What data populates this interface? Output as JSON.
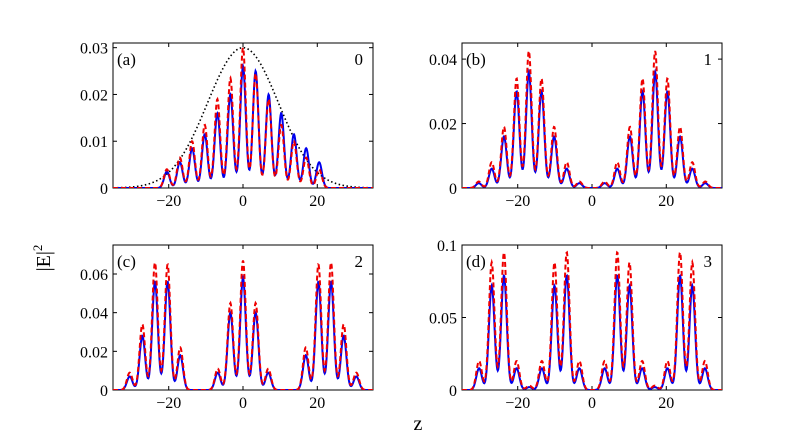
{
  "ylabel": "|E|",
  "ylabel_sup": "2",
  "xlabel": "z",
  "colors": {
    "blue": "#0000ee",
    "red": "#ee0000",
    "black": "#000000"
  },
  "chart_data": [
    {
      "type": "line",
      "panel": "(a)",
      "tag": "0",
      "xlim": [
        -35,
        35
      ],
      "ylim": [
        0,
        0.031
      ],
      "xticks": [
        "−20",
        "0",
        "20"
      ],
      "xtick_values": [
        -20,
        0,
        20
      ],
      "yticks": [
        "0",
        "0.01",
        "0.02",
        "0.03"
      ],
      "ytick_values": [
        0,
        0.01,
        0.02,
        0.03
      ],
      "envelope": {
        "amplitude": 0.03,
        "width": 13.5
      },
      "peaks": {
        "z": [
          -20.5,
          -17,
          -13.7,
          -10.3,
          -6.9,
          -3.4,
          0,
          3.4,
          6.9,
          10.3,
          13.7,
          17,
          20.5
        ],
        "blue": [
          0.0035,
          0.0055,
          0.0085,
          0.0115,
          0.016,
          0.02,
          0.026,
          0.025,
          0.02,
          0.016,
          0.0115,
          0.0085,
          0.0055
        ],
        "red": [
          0.004,
          0.0065,
          0.01,
          0.0135,
          0.019,
          0.0235,
          0.03,
          0.0245,
          0.019,
          0.0135,
          0.01,
          0.0065,
          0.004
        ]
      },
      "series": [
        {
          "style": "solid",
          "color": "blue"
        },
        {
          "style": "dashed",
          "color": "red"
        },
        {
          "style": "dotted",
          "color": "black"
        }
      ]
    },
    {
      "type": "line",
      "panel": "(b)",
      "tag": "1",
      "xlim": [
        -35,
        35
      ],
      "ylim": [
        0,
        0.045
      ],
      "xticks": [
        "−20",
        "0",
        "20"
      ],
      "xtick_values": [
        -20,
        0,
        20
      ],
      "yticks": [
        "0",
        "0.02",
        "0.04"
      ],
      "ytick_values": [
        0,
        0.02,
        0.04
      ],
      "peaks": {
        "z": [
          -30.5,
          -27,
          -23.7,
          -20.3,
          -17,
          -13.6,
          -10.2,
          -6.8,
          -3.4,
          3.4,
          6.8,
          10.2,
          13.6,
          17,
          20.3,
          23.7,
          27,
          30.5
        ],
        "blue": [
          0.0015,
          0.006,
          0.016,
          0.03,
          0.036,
          0.03,
          0.016,
          0.006,
          0.0015,
          0.0015,
          0.006,
          0.016,
          0.03,
          0.036,
          0.03,
          0.016,
          0.006,
          0.0015
        ],
        "red": [
          0.002,
          0.008,
          0.019,
          0.034,
          0.0425,
          0.034,
          0.019,
          0.008,
          0.002,
          0.002,
          0.008,
          0.019,
          0.034,
          0.0425,
          0.034,
          0.019,
          0.008,
          0.002
        ]
      },
      "series": [
        {
          "style": "solid",
          "color": "blue"
        },
        {
          "style": "dashed",
          "color": "red"
        }
      ]
    },
    {
      "type": "line",
      "panel": "(c)",
      "tag": "2",
      "xlim": [
        -35,
        35
      ],
      "ylim": [
        0,
        0.075
      ],
      "xticks": [
        "−20",
        "0",
        "20"
      ],
      "xtick_values": [
        -20,
        0,
        20
      ],
      "yticks": [
        "0",
        "0.02",
        "0.04",
        "0.06"
      ],
      "ytick_values": [
        0,
        0.02,
        0.04,
        0.06
      ],
      "peaks": {
        "z": [
          -30.5,
          -27.1,
          -23.7,
          -20.3,
          -16.9,
          -6.8,
          -3.4,
          0,
          3.4,
          6.8,
          16.9,
          20.3,
          23.7,
          27.1,
          30.5
        ],
        "blue": [
          0.007,
          0.028,
          0.056,
          0.056,
          0.018,
          0.009,
          0.04,
          0.058,
          0.04,
          0.009,
          0.018,
          0.056,
          0.056,
          0.028,
          0.007
        ],
        "red": [
          0.009,
          0.034,
          0.066,
          0.065,
          0.022,
          0.011,
          0.045,
          0.067,
          0.045,
          0.011,
          0.022,
          0.065,
          0.066,
          0.034,
          0.009
        ]
      },
      "series": [
        {
          "style": "solid",
          "color": "blue"
        },
        {
          "style": "dashed",
          "color": "red"
        }
      ]
    },
    {
      "type": "line",
      "panel": "(d)",
      "tag": "3",
      "xlim": [
        -35,
        35
      ],
      "ylim": [
        0,
        0.1
      ],
      "xticks": [
        "−20",
        "0",
        "20"
      ],
      "xtick_values": [
        -20,
        0,
        20
      ],
      "yticks": [
        "0",
        "0.05",
        "0.1"
      ],
      "ytick_values": [
        0,
        0.05,
        0.1
      ],
      "peaks": {
        "z": [
          -30.4,
          -27,
          -23.7,
          -20.3,
          -16.9,
          -13.5,
          -10.1,
          -6.8,
          -3.4,
          3.4,
          6.8,
          10.1,
          13.5,
          16.9,
          20.3,
          23.7,
          27,
          30.4
        ],
        "blue": [
          0.015,
          0.072,
          0.079,
          0.015,
          0.002,
          0.015,
          0.072,
          0.079,
          0.015,
          0.015,
          0.079,
          0.072,
          0.015,
          0.002,
          0.015,
          0.079,
          0.072,
          0.015
        ],
        "red": [
          0.02,
          0.088,
          0.095,
          0.02,
          0.003,
          0.02,
          0.088,
          0.095,
          0.02,
          0.02,
          0.095,
          0.088,
          0.02,
          0.003,
          0.02,
          0.095,
          0.088,
          0.02
        ]
      },
      "series": [
        {
          "style": "solid",
          "color": "blue"
        },
        {
          "style": "dashed",
          "color": "red"
        }
      ]
    }
  ]
}
